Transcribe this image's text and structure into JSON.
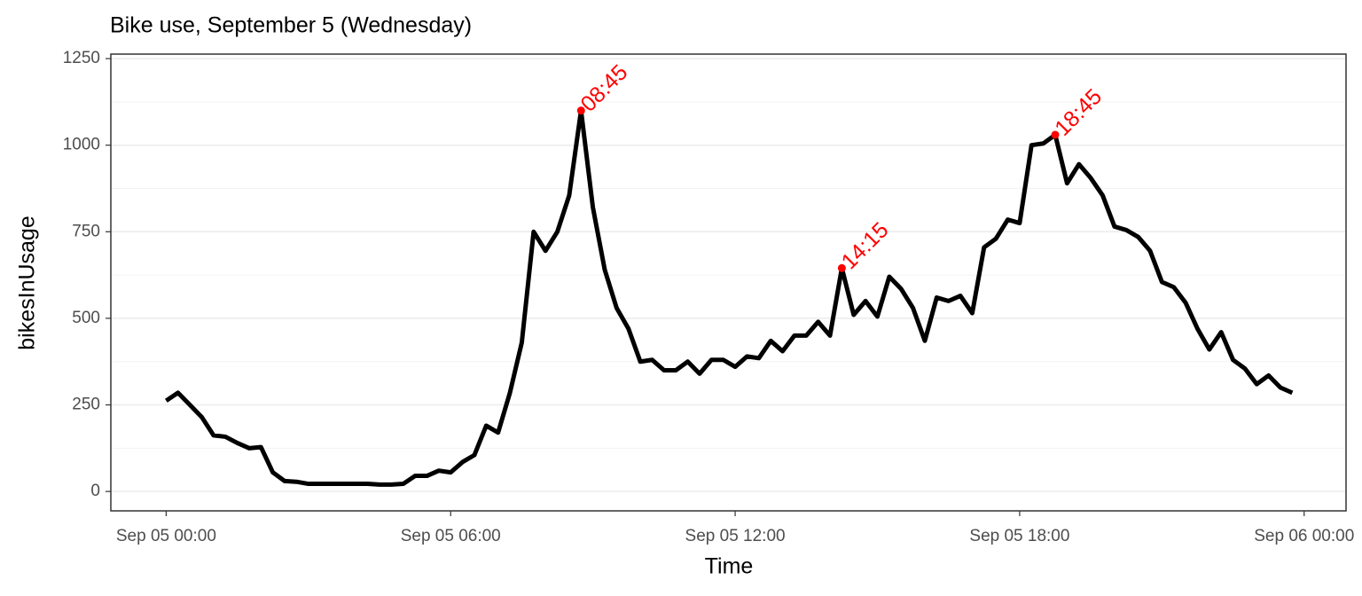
{
  "chart_data": {
    "type": "line",
    "title": "Bike use, September 5 (Wednesday)",
    "x_label": "Time",
    "y_label": "bikesInUsage",
    "x": [
      "Sep 05 00:00",
      "Sep 05 00:15",
      "Sep 05 00:30",
      "Sep 05 00:45",
      "Sep 05 01:00",
      "Sep 05 01:15",
      "Sep 05 01:30",
      "Sep 05 01:45",
      "Sep 05 02:00",
      "Sep 05 02:15",
      "Sep 05 02:30",
      "Sep 05 02:45",
      "Sep 05 03:00",
      "Sep 05 03:15",
      "Sep 05 03:30",
      "Sep 05 03:45",
      "Sep 05 04:00",
      "Sep 05 04:15",
      "Sep 05 04:30",
      "Sep 05 04:45",
      "Sep 05 05:00",
      "Sep 05 05:15",
      "Sep 05 05:30",
      "Sep 05 05:45",
      "Sep 05 06:00",
      "Sep 05 06:15",
      "Sep 05 06:30",
      "Sep 05 06:45",
      "Sep 05 07:00",
      "Sep 05 07:15",
      "Sep 05 07:30",
      "Sep 05 07:45",
      "Sep 05 08:00",
      "Sep 05 08:15",
      "Sep 05 08:30",
      "Sep 05 08:45",
      "Sep 05 09:00",
      "Sep 05 09:15",
      "Sep 05 09:30",
      "Sep 05 09:45",
      "Sep 05 10:00",
      "Sep 05 10:15",
      "Sep 05 10:30",
      "Sep 05 10:45",
      "Sep 05 11:00",
      "Sep 05 11:15",
      "Sep 05 11:30",
      "Sep 05 11:45",
      "Sep 05 12:00",
      "Sep 05 12:15",
      "Sep 05 12:30",
      "Sep 05 12:45",
      "Sep 05 13:00",
      "Sep 05 13:15",
      "Sep 05 13:30",
      "Sep 05 13:45",
      "Sep 05 14:00",
      "Sep 05 14:15",
      "Sep 05 14:30",
      "Sep 05 14:45",
      "Sep 05 15:00",
      "Sep 05 15:15",
      "Sep 05 15:30",
      "Sep 05 15:45",
      "Sep 05 16:00",
      "Sep 05 16:15",
      "Sep 05 16:30",
      "Sep 05 16:45",
      "Sep 05 17:00",
      "Sep 05 17:15",
      "Sep 05 17:30",
      "Sep 05 17:45",
      "Sep 05 18:00",
      "Sep 05 18:15",
      "Sep 05 18:30",
      "Sep 05 18:45",
      "Sep 05 19:00",
      "Sep 05 19:15",
      "Sep 05 19:30",
      "Sep 05 19:45",
      "Sep 05 20:00",
      "Sep 05 20:15",
      "Sep 05 20:30",
      "Sep 05 20:45",
      "Sep 05 21:00",
      "Sep 05 21:15",
      "Sep 05 21:30",
      "Sep 05 21:45",
      "Sep 05 22:00",
      "Sep 05 22:15",
      "Sep 05 22:30",
      "Sep 05 22:45",
      "Sep 05 23:00",
      "Sep 05 23:15",
      "Sep 05 23:30",
      "Sep 05 23:45"
    ],
    "values": [
      262,
      285,
      250,
      215,
      162,
      158,
      140,
      125,
      128,
      55,
      30,
      28,
      22,
      22,
      22,
      22,
      22,
      22,
      20,
      20,
      22,
      45,
      45,
      60,
      55,
      85,
      105,
      190,
      170,
      285,
      430,
      750,
      695,
      750,
      855,
      1100,
      820,
      640,
      530,
      470,
      375,
      380,
      350,
      350,
      375,
      340,
      380,
      380,
      360,
      390,
      385,
      435,
      405,
      450,
      450,
      490,
      450,
      645,
      510,
      550,
      505,
      620,
      585,
      530,
      435,
      560,
      550,
      565,
      515,
      705,
      730,
      785,
      775,
      1000,
      1005,
      1030,
      890,
      945,
      905,
      855,
      765,
      755,
      735,
      695,
      605,
      590,
      545,
      470,
      410,
      460,
      380,
      355,
      310,
      335,
      300,
      285
    ],
    "color": "#000000",
    "annotations": [
      {
        "x": "Sep 05 08:45",
        "y": 1100,
        "label": "08:45"
      },
      {
        "x": "Sep 05 14:15",
        "y": 645,
        "label": "14:15"
      },
      {
        "x": "Sep 05 18:45",
        "y": 1030,
        "label": "18:45"
      }
    ],
    "annotation_color": "#ff0000",
    "xlim": [
      "Sep 04 22:50",
      "Sep 06 00:53"
    ],
    "xticks": [
      "Sep 05 00:00",
      "Sep 05 06:00",
      "Sep 05 12:00",
      "Sep 05 18:00",
      "Sep 06 00:00"
    ],
    "ylim": [
      -56,
      1263
    ],
    "yticks": [
      0,
      250,
      500,
      750,
      1000,
      1250
    ],
    "grid": true
  }
}
